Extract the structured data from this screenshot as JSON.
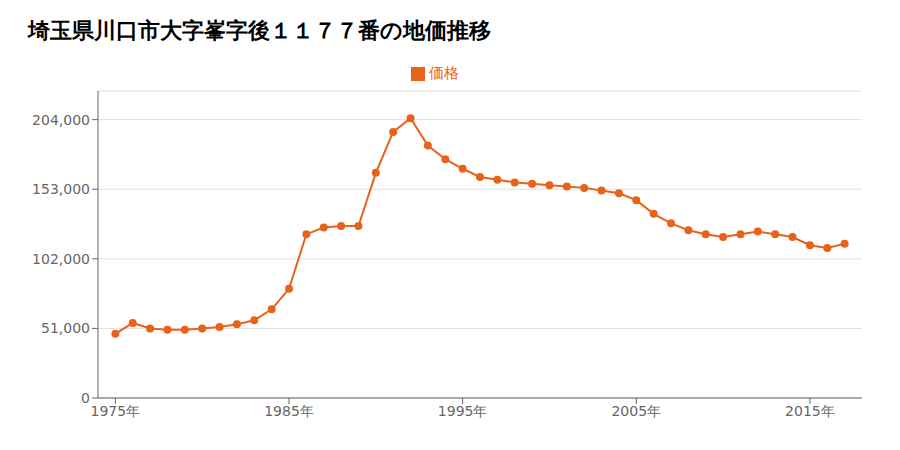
{
  "chart_data": {
    "type": "line",
    "title": "埼玉県川口市大字峯字後１１７７番の地価推移",
    "x": [
      1975,
      1976,
      1977,
      1978,
      1979,
      1980,
      1981,
      1982,
      1983,
      1984,
      1985,
      1986,
      1987,
      1988,
      1989,
      1990,
      1991,
      1992,
      1993,
      1994,
      1995,
      1996,
      1997,
      1998,
      1999,
      2000,
      2001,
      2002,
      2003,
      2004,
      2005,
      2006,
      2007,
      2008,
      2009,
      2010,
      2011,
      2012,
      2013,
      2014,
      2015,
      2016,
      2017
    ],
    "series": [
      {
        "name": "価格",
        "color": "#e8621a",
        "marker": "circle",
        "values": [
          47000,
          55000,
          51000,
          50000,
          50000,
          51000,
          52000,
          54000,
          57000,
          65000,
          80000,
          120000,
          125000,
          126000,
          126000,
          165000,
          195000,
          205000,
          185000,
          175000,
          168000,
          162000,
          160000,
          158000,
          157000,
          156000,
          155000,
          154000,
          152000,
          150000,
          145000,
          135000,
          128000,
          123000,
          120000,
          118000,
          120000,
          122000,
          120000,
          118000,
          112000,
          110000,
          113000
        ]
      }
    ],
    "xlim": [
      1974,
      2018
    ],
    "xticks": [
      {
        "value": 1975,
        "label": "1975年"
      },
      {
        "value": 1985,
        "label": "1985年"
      },
      {
        "value": 1995,
        "label": "1995年"
      },
      {
        "value": 2005,
        "label": "2005年"
      },
      {
        "value": 2015,
        "label": "2015年"
      }
    ],
    "ylim": [
      0,
      225000
    ],
    "yticks": [
      0,
      {
        "value": 51000,
        "label": "51,000"
      },
      {
        "value": 102000,
        "label": "102,000"
      },
      {
        "value": 153000,
        "label": "153,000"
      },
      {
        "value": 204000,
        "label": "204,000"
      }
    ],
    "grid": "y",
    "legend": "top"
  }
}
